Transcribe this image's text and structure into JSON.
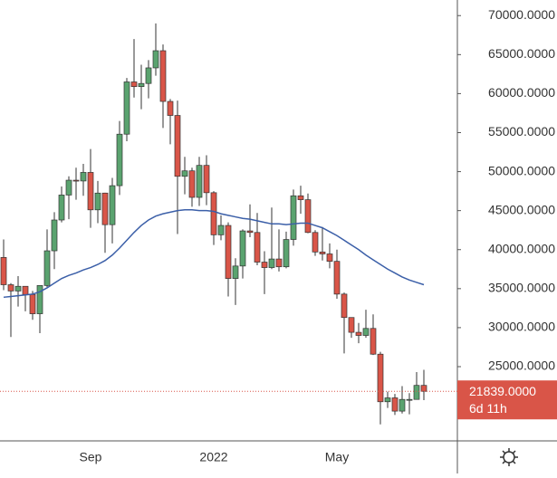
{
  "chart_data": {
    "type": "candlestick",
    "categories": [
      null,
      null,
      null,
      null,
      null,
      null,
      null,
      null,
      null,
      null,
      null,
      null,
      "Sep",
      null,
      null,
      null,
      null,
      null,
      null,
      null,
      null,
      null,
      null,
      null,
      null,
      null,
      null,
      null,
      null,
      "2022",
      null,
      null,
      null,
      null,
      null,
      null,
      null,
      null,
      null,
      null,
      null,
      null,
      null,
      null,
      null,
      null,
      "May",
      null,
      null,
      null,
      null,
      null,
      null,
      null,
      null,
      null,
      null,
      null,
      null
    ],
    "open": [
      39000,
      35500,
      34700,
      35300,
      34250,
      31780,
      35400,
      39850,
      43800,
      47000,
      48900,
      48800,
      49900,
      45100,
      47250,
      43200,
      48200,
      54800,
      61500,
      60900,
      61300,
      63300,
      65500,
      59000,
      57200,
      49400,
      50100,
      46700,
      50800,
      47300,
      41900,
      43100,
      36300,
      37900,
      42400,
      42200,
      38400,
      37700,
      38800,
      37800,
      41300,
      46900,
      46400,
      42200,
      39700,
      39450,
      38500,
      34300,
      31300,
      29400,
      29000,
      29900,
      26600,
      20500,
      21000,
      19300,
      20800,
      20800,
      22600
    ],
    "high": [
      41300,
      35700,
      36600,
      35100,
      34700,
      35400,
      42600,
      44800,
      48100,
      49400,
      50500,
      51000,
      52900,
      48800,
      47300,
      49200,
      56500,
      62000,
      67000,
      63700,
      64300,
      69000,
      66300,
      59300,
      59100,
      51900,
      50500,
      51900,
      52100,
      47500,
      44400,
      43500,
      38900,
      42600,
      45800,
      44700,
      39800,
      45400,
      42600,
      42300,
      47700,
      48200,
      47200,
      42500,
      42900,
      40800,
      40000,
      34500,
      31300,
      30600,
      32300,
      31700,
      26900,
      21800,
      21500,
      22500,
      21600,
      24300,
      24600
    ],
    "low": [
      34800,
      28800,
      32700,
      32100,
      31000,
      29300,
      35200,
      37500,
      43500,
      43900,
      46400,
      46900,
      42800,
      43400,
      39600,
      40800,
      47000,
      53900,
      59500,
      58000,
      59400,
      62300,
      55600,
      53500,
      42000,
      47100,
      45500,
      45600,
      45700,
      40600,
      41200,
      34000,
      32900,
      36300,
      41600,
      38000,
      34300,
      37500,
      37200,
      37600,
      40500,
      44600,
      42100,
      39200,
      38600,
      37600,
      33700,
      26700,
      28700,
      28000,
      28700,
      26500,
      17600,
      19700,
      18800,
      19000,
      18900,
      20800,
      20700
    ],
    "close": [
      35500,
      34700,
      35300,
      34250,
      31780,
      35400,
      39850,
      43800,
      47000,
      48900,
      48800,
      49900,
      45100,
      47250,
      43200,
      48200,
      54800,
      61500,
      60900,
      61300,
      63300,
      65500,
      59000,
      57200,
      49400,
      50100,
      46700,
      50800,
      47300,
      41900,
      43100,
      36300,
      37900,
      42400,
      42200,
      38400,
      37700,
      38800,
      37800,
      41300,
      46900,
      46400,
      42200,
      39700,
      39450,
      38500,
      34300,
      31300,
      29400,
      29000,
      29900,
      26600,
      20500,
      21000,
      19300,
      20800,
      20800,
      22600,
      21839
    ],
    "up_color": "#5aa36f",
    "down_color": "#d95548",
    "ma": {
      "color": "#3b5fa8",
      "values": [
        33900,
        34000,
        34100,
        34200,
        34300,
        34600,
        35100,
        35700,
        36300,
        36700,
        37000,
        37400,
        37700,
        38100,
        38600,
        39300,
        40200,
        41200,
        42200,
        43100,
        43800,
        44300,
        44600,
        44800,
        45000,
        45100,
        45100,
        45000,
        45000,
        44900,
        44600,
        44400,
        44200,
        44000,
        43900,
        43700,
        43500,
        43300,
        43300,
        43200,
        43300,
        43400,
        43400,
        43100,
        42800,
        42300,
        41800,
        41200,
        40600,
        40000,
        39300,
        38700,
        38100,
        37500,
        37000,
        36500,
        36100,
        35800,
        35500
      ]
    },
    "ylim": [
      15600,
      72000
    ],
    "yticks": [
      {
        "value": 25000,
        "label": "25000.0000"
      },
      {
        "value": 30000,
        "label": "30000.0000"
      },
      {
        "value": 35000,
        "label": "35000.0000"
      },
      {
        "value": 40000,
        "label": "40000.0000"
      },
      {
        "value": 45000,
        "label": "45000.0000"
      },
      {
        "value": 50000,
        "label": "50000.0000"
      },
      {
        "value": 55000,
        "label": "55000.0000"
      },
      {
        "value": 60000,
        "label": "60000.0000"
      },
      {
        "value": 65000,
        "label": "65000.0000"
      },
      {
        "value": 70000,
        "label": "70000.0000"
      }
    ],
    "last_price": {
      "value": 21839,
      "label": "21839.0000"
    },
    "countdown": "6d 11h",
    "grid": false
  }
}
